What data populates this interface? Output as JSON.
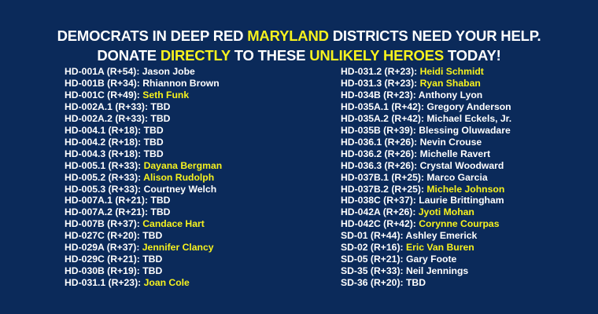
{
  "headline": {
    "line1": [
      {
        "text": "DEMOCRATS IN DEEP RED ",
        "highlight": false
      },
      {
        "text": "MARYLAND",
        "highlight": true
      },
      {
        "text": " DISTRICTS NEED YOUR HELP.",
        "highlight": false
      }
    ],
    "line2": [
      {
        "text": "DONATE ",
        "highlight": false
      },
      {
        "text": "DIRECTLY",
        "highlight": true
      },
      {
        "text": " TO THESE ",
        "highlight": false
      },
      {
        "text": "UNLIKELY HEROES",
        "highlight": true
      },
      {
        "text": " TODAY!",
        "highlight": false
      }
    ]
  },
  "colors": {
    "background": "#0b2a5a",
    "text": "#ffffff",
    "highlight": "#f7f21e"
  },
  "left_column": [
    {
      "district": "HD-001A (R+54): ",
      "name": "Jason Jobe",
      "highlight": false
    },
    {
      "district": "HD-001B (R+34): ",
      "name": "Rhiannon Brown",
      "highlight": false
    },
    {
      "district": "HD-001C (R+49): ",
      "name": "Seth Funk",
      "highlight": true
    },
    {
      "district": "HD-002A.1 (R+33): ",
      "name": "TBD",
      "highlight": false
    },
    {
      "district": "HD-002A.2 (R+33): ",
      "name": "TBD",
      "highlight": false
    },
    {
      "district": "HD-004.1 (R+18): ",
      "name": "TBD",
      "highlight": false
    },
    {
      "district": "HD-004.2 (R+18): ",
      "name": "TBD",
      "highlight": false
    },
    {
      "district": "HD-004.3 (R+18): ",
      "name": "TBD",
      "highlight": false
    },
    {
      "district": "HD-005.1 (R+33): ",
      "name": "Dayana Bergman",
      "highlight": true
    },
    {
      "district": "HD-005.2 (R+33): ",
      "name": "Alison Rudolph",
      "highlight": true
    },
    {
      "district": "HD-005.3 (R+33): ",
      "name": "Courtney Welch",
      "highlight": false
    },
    {
      "district": "HD-007A.1 (R+21): ",
      "name": "TBD",
      "highlight": false
    },
    {
      "district": "HD-007A.2 (R+21): ",
      "name": "TBD",
      "highlight": false
    },
    {
      "district": "HD-007B (R+37): ",
      "name": "Candace Hart",
      "highlight": true
    },
    {
      "district": "HD-027C (R+20): ",
      "name": "TBD",
      "highlight": false
    },
    {
      "district": "HD-029A (R+37): ",
      "name": "Jennifer Clancy",
      "highlight": true
    },
    {
      "district": "HD-029C (R+21): ",
      "name": "TBD",
      "highlight": false
    },
    {
      "district": "HD-030B (R+19): ",
      "name": "TBD",
      "highlight": false
    },
    {
      "district": "HD-031.1 (R+23): ",
      "name": "Joan Cole",
      "highlight": true
    }
  ],
  "right_column": [
    {
      "district": "HD-031.2 (R+23): ",
      "name": "Heidi Schmidt",
      "highlight": true
    },
    {
      "district": "HD-031.3 (R+23): ",
      "name": "Ryan Shaban",
      "highlight": true
    },
    {
      "district": "HD-034B (R+23): ",
      "name": "Anthony Lyon",
      "highlight": false
    },
    {
      "district": "HD-035A.1 (R+42): ",
      "name": "Gregory Anderson",
      "highlight": false
    },
    {
      "district": "HD-035A.2 (R+42): ",
      "name": "Michael Eckels, Jr.",
      "highlight": false
    },
    {
      "district": "HD-035B (R+39): ",
      "name": "Blessing Oluwadare",
      "highlight": false
    },
    {
      "district": "HD-036.1 (R+26): ",
      "name": "Nevin Crouse",
      "highlight": false
    },
    {
      "district": "HD-036.2 (R+26): ",
      "name": "Michelle Ravert",
      "highlight": false
    },
    {
      "district": "HD-036.3 (R+26): ",
      "name": "Crystal Woodward",
      "highlight": false
    },
    {
      "district": "HD-037B.1 (R+25): ",
      "name": "Marco Garcia",
      "highlight": false
    },
    {
      "district": "HD-037B.2 (R+25): ",
      "name": "Michele Johnson",
      "highlight": true
    },
    {
      "district": "HD-038C (R+37): ",
      "name": "Laurie Brittingham",
      "highlight": false
    },
    {
      "district": "HD-042A (R+26): ",
      "name": "Jyoti Mohan",
      "highlight": true
    },
    {
      "district": "HD-042C (R+42): ",
      "name": "Corynne Courpas",
      "highlight": true
    },
    {
      "district": "SD-01 (R+44): ",
      "name": "Ashley Emerick",
      "highlight": false
    },
    {
      "district": "SD-02 (R+16): ",
      "name": "Eric Van Buren",
      "highlight": true
    },
    {
      "district": "SD-05 (R+21): ",
      "name": "Gary Foote",
      "highlight": false
    },
    {
      "district": "SD-35 (R+33): ",
      "name": "Neil Jennings",
      "highlight": false
    },
    {
      "district": "SD-36 (R+20): ",
      "name": "TBD",
      "highlight": false
    }
  ]
}
